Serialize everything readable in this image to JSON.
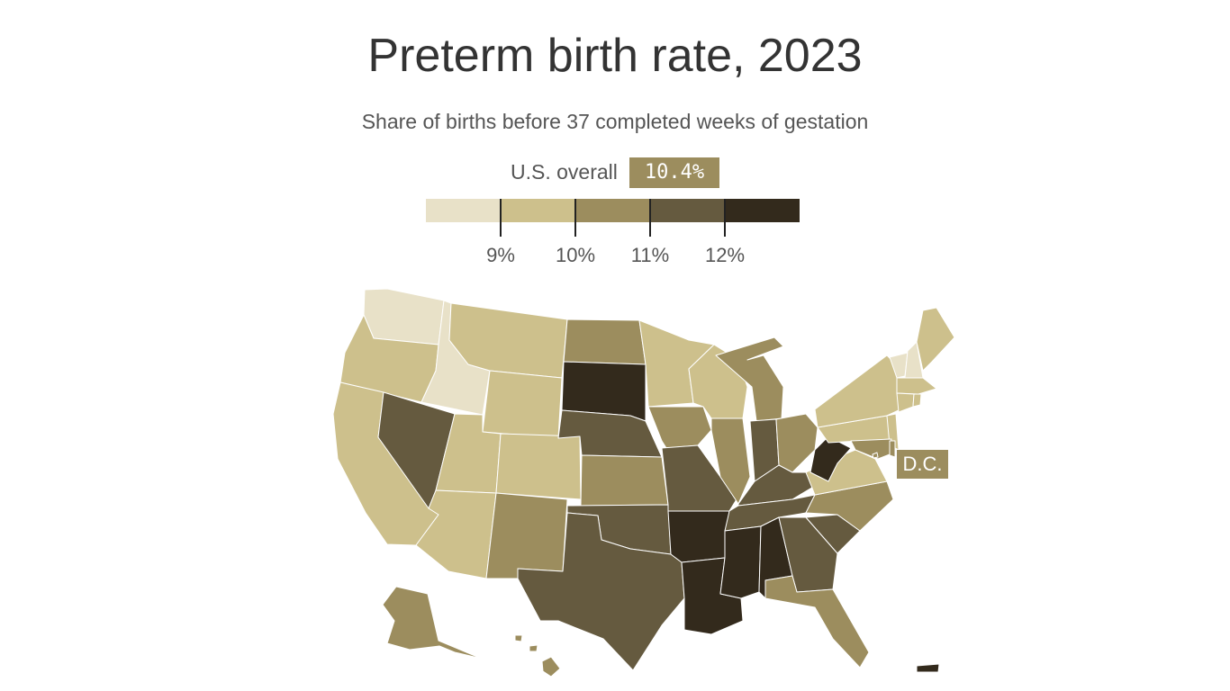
{
  "title": "Preterm birth rate, 2023",
  "subtitle": "Share of births before 37 completed weeks of gestation",
  "overall": {
    "label": "U.S. overall",
    "value": "10.4%"
  },
  "legend": {
    "colors": [
      "#e8e1c8",
      "#cdc08c",
      "#9c8d5e",
      "#655a3f",
      "#332a1c"
    ],
    "ticks": [
      "9%",
      "10%",
      "11%",
      "12%"
    ]
  },
  "dc_label": "D.C.",
  "chart_data": {
    "type": "choropleth",
    "bins": [
      {
        "range": "<9%",
        "color": "#e8e1c8"
      },
      {
        "range": "9%–10%",
        "color": "#cdc08c"
      },
      {
        "range": "10%–11%",
        "color": "#9c8d5e"
      },
      {
        "range": "11%–12%",
        "color": "#655a3f"
      },
      {
        "range": "≥12%",
        "color": "#332a1c"
      }
    ],
    "states_by_bin": {
      "<9%": [
        "WA",
        "ID",
        "VT",
        "NH"
      ],
      "9%–10%": [
        "OR",
        "CA",
        "MT",
        "WY",
        "UT",
        "CO",
        "AZ",
        "MN",
        "WI",
        "NY",
        "PA",
        "NJ",
        "VA",
        "ME",
        "MA",
        "CT",
        "RI"
      ],
      "10%–11%": [
        "ND",
        "KS",
        "IA",
        "IL",
        "MI",
        "OH",
        "NM",
        "NC",
        "FL",
        "MD",
        "DE",
        "AK",
        "HI",
        "DC"
      ],
      "11%–12%": [
        "NV",
        "NE",
        "MO",
        "IN",
        "KY",
        "TN",
        "OK",
        "TX",
        "GA",
        "SC"
      ],
      "≥12%": [
        "SD",
        "AR",
        "LA",
        "MS",
        "AL",
        "WV",
        "PR"
      ]
    }
  }
}
